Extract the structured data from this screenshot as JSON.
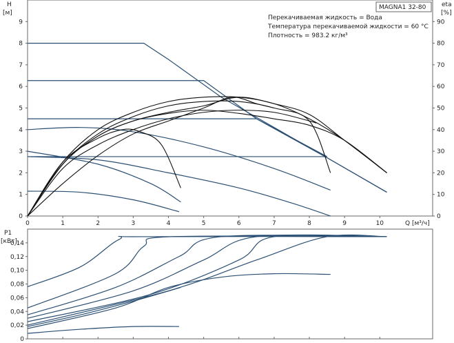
{
  "chart_data": [
    {
      "type": "line",
      "name": "head-and-efficiency",
      "xlabel": "Q [м³/ч]",
      "ylabel_left_top": "H",
      "ylabel_left_unit": "[м]",
      "ylabel_right_top": "eta",
      "ylabel_right_unit": "[%]",
      "xlim": [
        0,
        11.5
      ],
      "ylim": [
        0,
        10
      ],
      "ylim_right": [
        0,
        100
      ],
      "x_ticks": [
        0,
        1,
        2,
        3,
        4,
        5,
        6,
        7,
        8,
        9,
        10
      ],
      "y_ticks": [
        0,
        1,
        2,
        3,
        4,
        5,
        6,
        7,
        8,
        9
      ],
      "y_ticks_right": [
        0,
        10,
        20,
        30,
        40,
        50,
        60,
        70,
        80,
        90
      ],
      "grid": false,
      "model_box": "MAGNA1 32-80",
      "info_lines": [
        "Перекачиваемая жидкость = Вода",
        "Температура перекачиваемой жидкости = 60 °C",
        "Плотность = 983.2 кг/м³"
      ],
      "head_curves": [
        {
          "points": [
            [
              0,
              8.0
            ],
            [
              3.3,
              8.0
            ],
            [
              4.0,
              7.25
            ],
            [
              5.5,
              5.5
            ],
            [
              7.0,
              4.1
            ],
            [
              8.5,
              2.7
            ],
            [
              10.2,
              1.1
            ]
          ]
        },
        {
          "points": [
            [
              0,
              6.27
            ],
            [
              5.0,
              6.27
            ],
            [
              6.5,
              4.5
            ],
            [
              8.5,
              2.7
            ],
            [
              10.2,
              1.1
            ]
          ]
        },
        {
          "points": [
            [
              0,
              4.5
            ],
            [
              6.5,
              4.5
            ],
            [
              8.5,
              2.75
            ]
          ]
        },
        {
          "points": [
            [
              0,
              2.75
            ],
            [
              8.5,
              2.75
            ]
          ]
        },
        {
          "points": [
            [
              0,
              4.0
            ],
            [
              1.5,
              4.1
            ],
            [
              3.0,
              3.9
            ],
            [
              5.0,
              3.2
            ],
            [
              7.0,
              2.2
            ],
            [
              8.6,
              1.2
            ]
          ]
        },
        {
          "points": [
            [
              0,
              2.75
            ],
            [
              2.0,
              2.6
            ],
            [
              4.0,
              2.0
            ],
            [
              6.0,
              1.3
            ],
            [
              7.5,
              0.6
            ],
            [
              8.6,
              0.0
            ]
          ]
        },
        {
          "points": [
            [
              0,
              1.15
            ],
            [
              1.5,
              1.1
            ],
            [
              3.0,
              0.75
            ],
            [
              4.3,
              0.2
            ]
          ]
        },
        {
          "points": [
            [
              0,
              3.0
            ],
            [
              2.0,
              2.4
            ],
            [
              3.5,
              1.5
            ],
            [
              4.35,
              0.65
            ]
          ]
        }
      ],
      "efficiency_curves": [
        {
          "points": [
            [
              0,
              0
            ],
            [
              1,
              24
            ],
            [
              2,
              37
            ],
            [
              3,
              44
            ],
            [
              4,
              47.5
            ],
            [
              5,
              49
            ],
            [
              6,
              47.5
            ],
            [
              7,
              45
            ],
            [
              8,
              42
            ],
            [
              9,
              35
            ],
            [
              10.2,
              20
            ]
          ]
        },
        {
          "points": [
            [
              0,
              0
            ],
            [
              1,
              24
            ],
            [
              2,
              37
            ],
            [
              3,
              44
            ],
            [
              4,
              48
            ],
            [
              5,
              51
            ],
            [
              6,
              55
            ],
            [
              7,
              52
            ],
            [
              8,
              47
            ],
            [
              9,
              35
            ],
            [
              10.2,
              20
            ]
          ]
        },
        {
          "points": [
            [
              0,
              0
            ],
            [
              1,
              25
            ],
            [
              2,
              40
            ],
            [
              3,
              48
            ],
            [
              4,
              53
            ],
            [
              5,
              55
            ],
            [
              6,
              55
            ],
            [
              7,
              52
            ],
            [
              8,
              45
            ],
            [
              9,
              35
            ],
            [
              10.2,
              20
            ]
          ]
        },
        {
          "points": [
            [
              0,
              0
            ],
            [
              1,
              24
            ],
            [
              2,
              38
            ],
            [
              3,
              46
            ],
            [
              4,
              51
            ],
            [
              5,
              53
            ],
            [
              6,
              53
            ],
            [
              7,
              50
            ],
            [
              8,
              44
            ],
            [
              8.6,
              20
            ]
          ]
        },
        {
          "points": [
            [
              0,
              0
            ],
            [
              1,
              25
            ],
            [
              2,
              36
            ],
            [
              2.7,
              40
            ],
            [
              3.2,
              39
            ],
            [
              3.8,
              33
            ],
            [
              4.35,
              13
            ]
          ]
        },
        {
          "points": [
            [
              0,
              0
            ],
            [
              1,
              22
            ],
            [
              2,
              33
            ],
            [
              3,
              40
            ],
            [
              4,
              45
            ],
            [
              5,
              48
            ],
            [
              6,
              49
            ],
            [
              7,
              48
            ],
            [
              8,
              44
            ],
            [
              8.2,
              43
            ]
          ]
        },
        {
          "points": [
            [
              0,
              0
            ],
            [
              1,
              15
            ],
            [
              2,
              28
            ],
            [
              3,
              38
            ],
            [
              4,
              44
            ],
            [
              5,
              50
            ],
            [
              5.8,
              55
            ],
            [
              6.5,
              52
            ],
            [
              7,
              50
            ]
          ]
        }
      ]
    },
    {
      "type": "line",
      "name": "power",
      "ylabel": "P1",
      "ylabel_unit": "[кВт]",
      "xlim": [
        0,
        11.5
      ],
      "ylim": [
        0,
        0.16
      ],
      "y_ticks": [
        0,
        0.02,
        0.04,
        0.06,
        0.08,
        0.1,
        0.12,
        0.14
      ],
      "y_tick_labels": [
        "0",
        "0,02",
        "0,04",
        "0,06",
        "0,08",
        "0,10",
        "0,12",
        "0,14"
      ],
      "grid": false,
      "power_curves": [
        {
          "points": [
            [
              0,
              0.076
            ],
            [
              1.5,
              0.105
            ],
            [
              2.6,
              0.145
            ],
            [
              3.3,
              0.149
            ],
            [
              10.2,
              0.149
            ]
          ]
        },
        {
          "points": [
            [
              0,
              0.045
            ],
            [
              2.5,
              0.095
            ],
            [
              3.3,
              0.135
            ],
            [
              4.1,
              0.149
            ],
            [
              10.2,
              0.149
            ]
          ]
        },
        {
          "points": [
            [
              0,
              0.035
            ],
            [
              2.5,
              0.075
            ],
            [
              4.3,
              0.12
            ],
            [
              5.5,
              0.149
            ],
            [
              10.2,
              0.149
            ]
          ]
        },
        {
          "points": [
            [
              0,
              0.03
            ],
            [
              3.0,
              0.07
            ],
            [
              5.0,
              0.115
            ],
            [
              6.5,
              0.149
            ],
            [
              10.2,
              0.149
            ]
          ]
        },
        {
          "points": [
            [
              0,
              0.025
            ],
            [
              3.5,
              0.065
            ],
            [
              6.0,
              0.115
            ],
            [
              7.0,
              0.149
            ],
            [
              10.2,
              0.149
            ]
          ]
        },
        {
          "points": [
            [
              0,
              0.02
            ],
            [
              4.0,
              0.07
            ],
            [
              6.5,
              0.115
            ],
            [
              8.5,
              0.149
            ],
            [
              10.2,
              0.149
            ]
          ]
        },
        {
          "points": [
            [
              0,
              0.015
            ],
            [
              2.5,
              0.045
            ],
            [
              4.0,
              0.075
            ],
            [
              5.5,
              0.09
            ],
            [
              7.0,
              0.095
            ],
            [
              8.6,
              0.094
            ]
          ]
        },
        {
          "points": [
            [
              0,
              0.018
            ],
            [
              1.5,
              0.035
            ],
            [
              3.0,
              0.055
            ],
            [
              4.35,
              0.075
            ]
          ]
        },
        {
          "points": [
            [
              0,
              0.008
            ],
            [
              1.5,
              0.014
            ],
            [
              3.0,
              0.018
            ],
            [
              4.3,
              0.018
            ]
          ]
        }
      ]
    }
  ]
}
